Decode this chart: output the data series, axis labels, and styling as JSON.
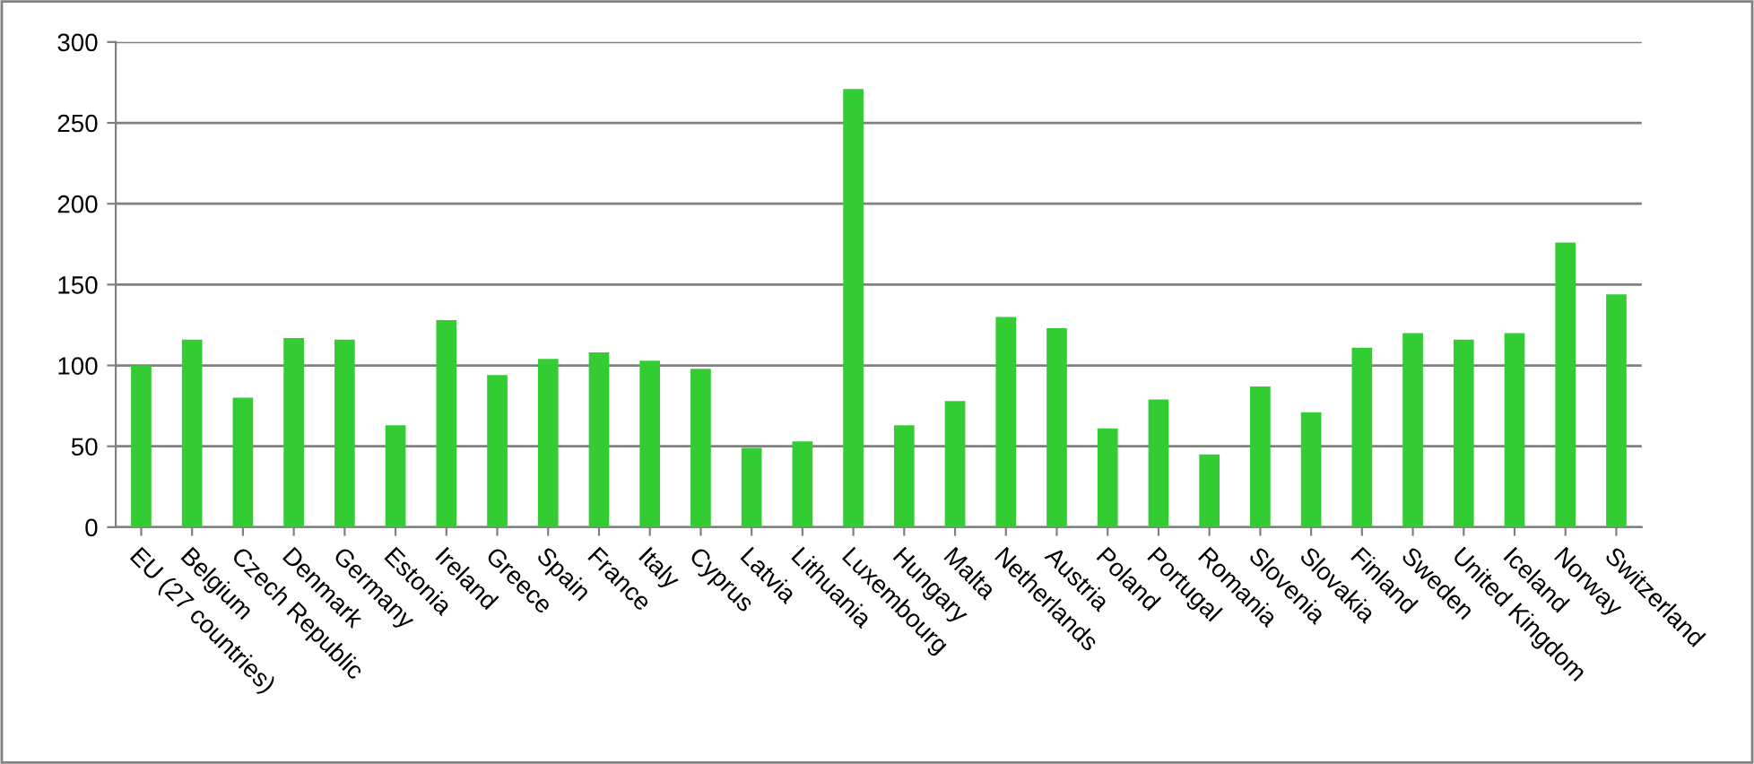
{
  "chart_data": {
    "type": "bar",
    "categories": [
      "EU (27 countries)",
      "Belgium",
      "Czech Republic",
      "Denmark",
      "Germany",
      "Estonia",
      "Ireland",
      "Greece",
      "Spain",
      "France",
      "Italy",
      "Cyprus",
      "Latvia",
      "Lithuania",
      "Luxembourg",
      "Hungary",
      "Malta",
      "Netherlands",
      "Austria",
      "Poland",
      "Portugal",
      "Romania",
      "Slovenia",
      "Slovakia",
      "Finland",
      "Sweden",
      "United Kingdom",
      "Iceland",
      "Norway",
      "Switzerland"
    ],
    "values": [
      100,
      116,
      80,
      117,
      116,
      63,
      128,
      94,
      104,
      108,
      103,
      98,
      49,
      53,
      271,
      63,
      78,
      130,
      123,
      61,
      79,
      45,
      87,
      71,
      111,
      120,
      116,
      120,
      176,
      144
    ],
    "color": "#33cc33",
    "ylim": [
      0,
      300
    ],
    "yticks": [
      0,
      50,
      100,
      150,
      200,
      250,
      300
    ],
    "grid": "y"
  }
}
